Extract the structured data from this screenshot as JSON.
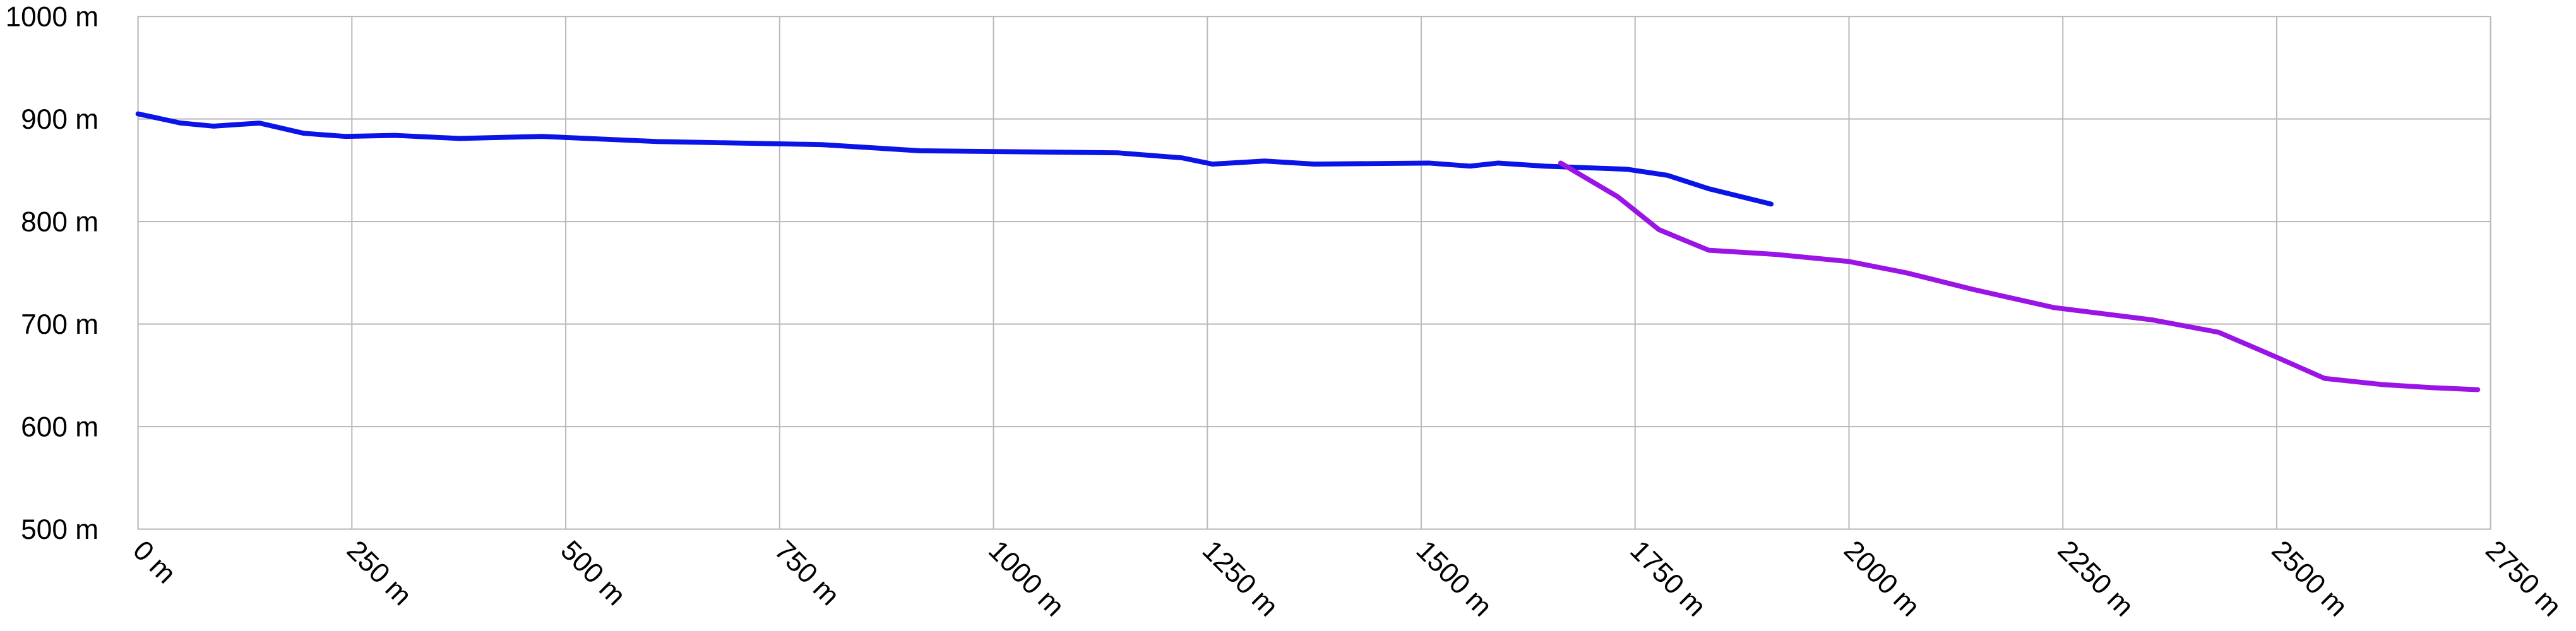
{
  "chart_data": {
    "type": "line",
    "xlim": [
      0,
      2750
    ],
    "xticks": [
      {
        "value": 0,
        "label": "0 m"
      },
      {
        "value": 250,
        "label": "250 m"
      },
      {
        "value": 500,
        "label": "500 m"
      },
      {
        "value": 750,
        "label": "750 m"
      },
      {
        "value": 1000,
        "label": "1000 m"
      },
      {
        "value": 1250,
        "label": "1250 m"
      },
      {
        "value": 1500,
        "label": "1500 m"
      },
      {
        "value": 1750,
        "label": "1750 m"
      },
      {
        "value": 2000,
        "label": "2000 m"
      },
      {
        "value": 2250,
        "label": "2250 m"
      },
      {
        "value": 2500,
        "label": "2500 m"
      },
      {
        "value": 2750,
        "label": "2750 m"
      }
    ],
    "ylim": [
      500,
      1000
    ],
    "yticks": [
      {
        "value": 500,
        "label": "500 m"
      },
      {
        "value": 600,
        "label": "600 m"
      },
      {
        "value": 700,
        "label": "700 m"
      },
      {
        "value": 800,
        "label": "800 m"
      },
      {
        "value": 900,
        "label": "900 m"
      },
      {
        "value": 1000,
        "label": "1000 m"
      }
    ],
    "grid": true,
    "series": [
      {
        "color": "#0a14e6",
        "x": [
          0,
          50,
          88,
          142,
          194,
          242,
          300,
          376,
          472,
          607,
          799,
          914,
          1145,
          1221,
          1256,
          1317,
          1375,
          1509,
          1557,
          1590,
          1644,
          1740,
          1788,
          1836,
          1909
        ],
        "values": [
          905,
          896,
          893,
          896,
          886,
          883,
          884,
          881,
          883,
          878,
          875,
          869,
          867,
          862,
          856,
          859,
          856,
          857,
          854,
          857,
          854,
          851,
          845,
          832,
          817
        ]
      },
      {
        "color": "#9b14e6",
        "x": [
          1663,
          1730,
          1778,
          1836,
          1913,
          2000,
          2067,
          2144,
          2240,
          2355,
          2432,
          2499,
          2556,
          2623,
          2681,
          2735
        ],
        "values": [
          857,
          824,
          792,
          772,
          768,
          761,
          750,
          734,
          716,
          704,
          692,
          668,
          647,
          641,
          638,
          636
        ]
      }
    ]
  }
}
